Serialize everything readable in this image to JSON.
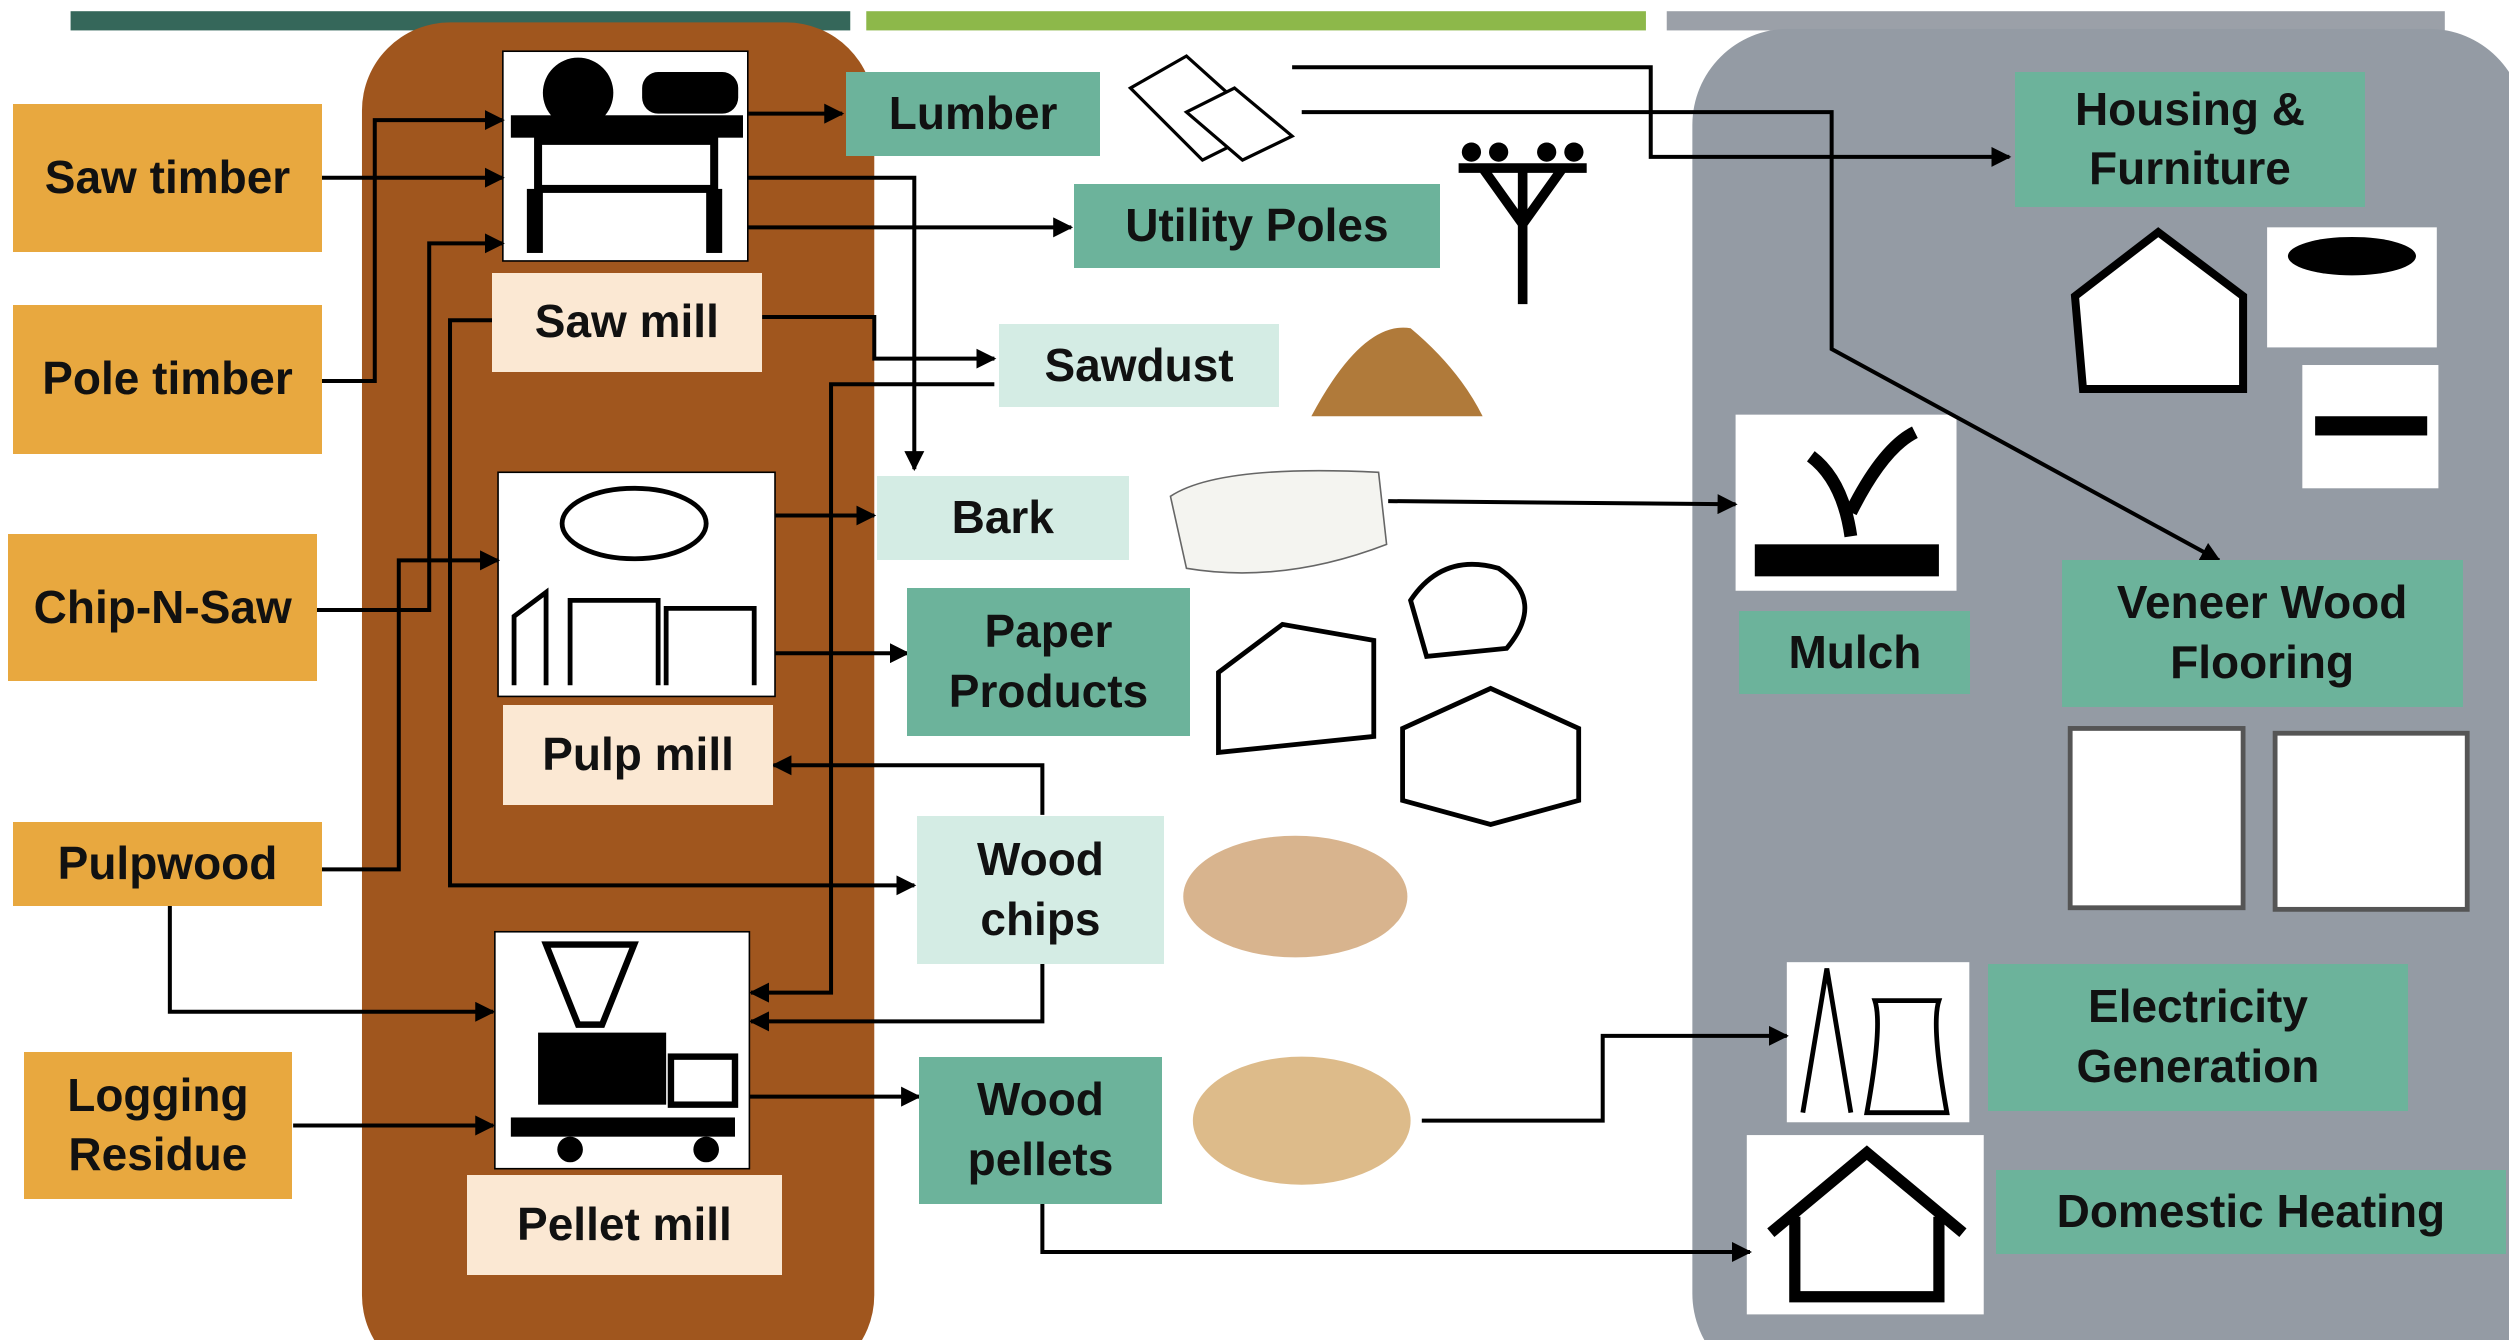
{
  "inputs": [
    "Saw timber",
    "Pole timber",
    "Chip-N-Saw",
    "Pulpwood",
    "Logging Residue"
  ],
  "mills": [
    "Saw mill",
    "Pulp mill",
    "Pellet mill"
  ],
  "products": [
    "Lumber",
    "Utility Poles",
    "Sawdust",
    "Bark",
    "Paper Products",
    "Wood chips",
    "Wood pellets"
  ],
  "end_uses": [
    "Housing & Furniture",
    "Mulch",
    "Veneer Wood Flooring",
    "Electricity Generation",
    "Domestic Heating"
  ]
}
